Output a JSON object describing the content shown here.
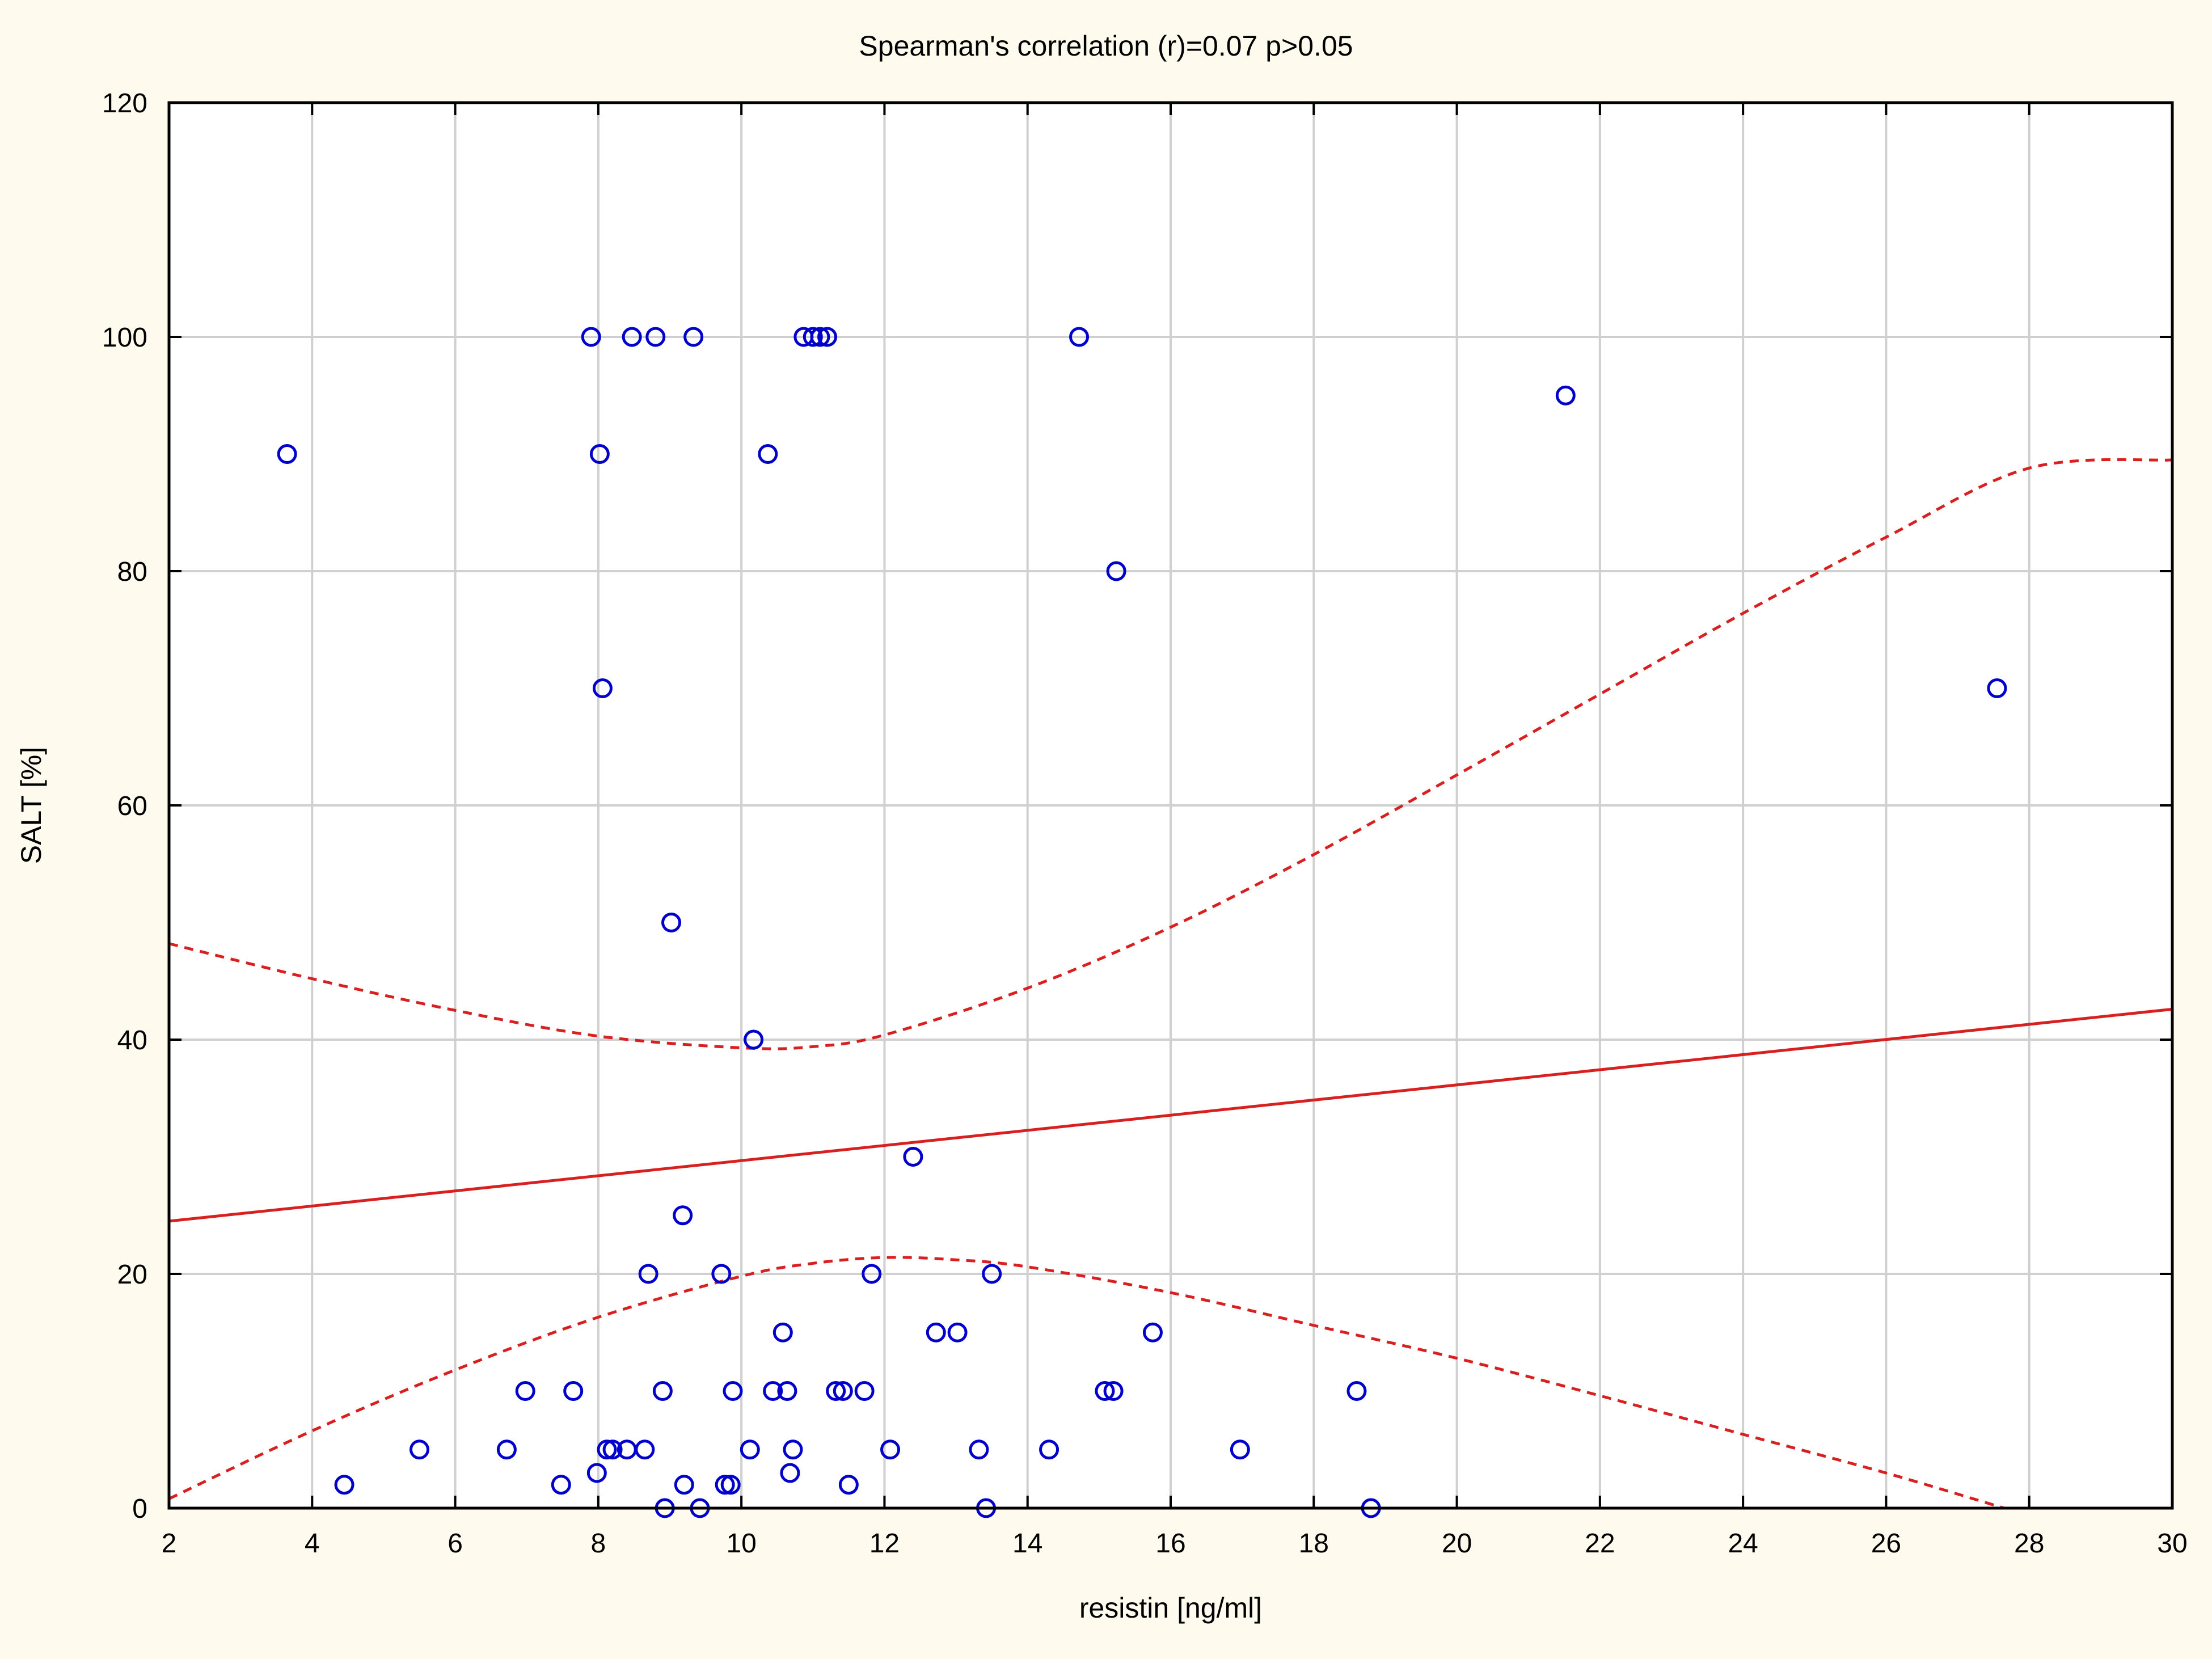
{
  "chart_data": {
    "type": "scatter",
    "title": "Spearman's correlation (r)=0.07 p>0.05",
    "xlabel": "resistin [ng/ml]",
    "ylabel": "SALT [%]",
    "xlim": [
      2,
      30
    ],
    "ylim": [
      0,
      120
    ],
    "xticks": [
      2,
      4,
      6,
      8,
      10,
      12,
      14,
      16,
      18,
      20,
      22,
      24,
      26,
      28,
      30
    ],
    "yticks": [
      0,
      20,
      40,
      60,
      80,
      100,
      120
    ],
    "grid": true,
    "colors": {
      "points": "#0000cc",
      "fit": "#d92020",
      "grid": "#d0d0d0",
      "background": "#fffaee"
    },
    "points": [
      [
        3.65,
        90
      ],
      [
        4.45,
        2
      ],
      [
        5.5,
        5
      ],
      [
        6.72,
        5
      ],
      [
        6.98,
        10
      ],
      [
        7.48,
        2
      ],
      [
        7.65,
        10
      ],
      [
        7.9,
        100
      ],
      [
        7.98,
        3
      ],
      [
        8.02,
        90
      ],
      [
        8.06,
        70
      ],
      [
        8.12,
        5
      ],
      [
        8.2,
        5
      ],
      [
        8.4,
        5
      ],
      [
        8.47,
        100
      ],
      [
        8.65,
        5
      ],
      [
        8.7,
        20
      ],
      [
        8.8,
        100
      ],
      [
        8.9,
        10
      ],
      [
        8.93,
        0
      ],
      [
        9.02,
        50
      ],
      [
        9.18,
        25
      ],
      [
        9.2,
        2
      ],
      [
        9.33,
        100
      ],
      [
        9.42,
        0
      ],
      [
        9.72,
        20
      ],
      [
        9.77,
        2
      ],
      [
        9.85,
        2
      ],
      [
        9.88,
        10
      ],
      [
        10.12,
        5
      ],
      [
        10.17,
        40
      ],
      [
        10.37,
        90
      ],
      [
        10.44,
        10
      ],
      [
        10.58,
        15
      ],
      [
        10.64,
        10
      ],
      [
        10.68,
        3
      ],
      [
        10.72,
        5
      ],
      [
        10.87,
        100
      ],
      [
        11.0,
        100
      ],
      [
        11.1,
        100
      ],
      [
        11.2,
        100
      ],
      [
        11.32,
        10
      ],
      [
        11.42,
        10
      ],
      [
        11.5,
        2
      ],
      [
        11.72,
        10
      ],
      [
        11.82,
        20
      ],
      [
        12.08,
        5
      ],
      [
        12.4,
        30
      ],
      [
        12.72,
        15
      ],
      [
        13.02,
        15
      ],
      [
        13.32,
        5
      ],
      [
        13.42,
        0
      ],
      [
        13.5,
        20
      ],
      [
        14.3,
        5
      ],
      [
        14.72,
        100
      ],
      [
        15.08,
        10
      ],
      [
        15.2,
        10
      ],
      [
        15.24,
        80
      ],
      [
        15.75,
        15
      ],
      [
        16.97,
        5
      ],
      [
        18.6,
        10
      ],
      [
        18.8,
        0
      ],
      [
        21.52,
        95
      ],
      [
        27.55,
        70
      ]
    ],
    "fit_line": {
      "x": [
        2,
        30
      ],
      "y": [
        24.5,
        42.6
      ]
    },
    "confidence_band": {
      "upper": {
        "x": [
          2,
          4,
          6,
          8,
          10,
          11,
          12,
          14,
          16,
          18,
          20,
          22,
          24,
          26,
          28,
          30
        ],
        "y": [
          48.2,
          45.2,
          42.5,
          40.3,
          39.3,
          39.4,
          40.4,
          44.4,
          49.6,
          55.8,
          62.6,
          69.5,
          76.4,
          82.9,
          88.8,
          89.5
        ]
      },
      "lower": {
        "x": [
          2,
          4,
          6,
          8,
          10,
          11,
          12,
          13,
          14,
          16,
          18,
          20,
          22,
          24,
          26,
          27.65
        ],
        "y": [
          0.8,
          6.6,
          11.8,
          16.3,
          19.8,
          20.9,
          21.4,
          21.2,
          20.6,
          18.4,
          15.6,
          12.8,
          9.6,
          6.3,
          3.0,
          0
        ]
      }
    }
  }
}
